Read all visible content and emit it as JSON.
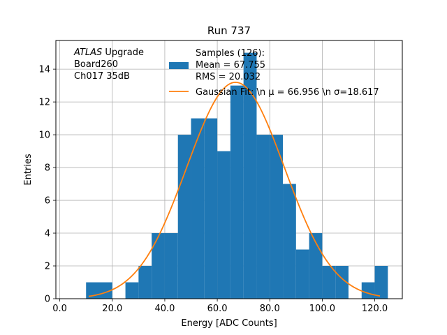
{
  "chart_data": {
    "type": "bar",
    "title": "Run 737",
    "xlabel": "Energy [ADC Counts]",
    "ylabel": "Entries",
    "xlim": [
      -1.5,
      130.5
    ],
    "ylim": [
      0,
      15.75
    ],
    "grid": true,
    "x_ticks": [
      0,
      20,
      40,
      60,
      80,
      100,
      120
    ],
    "x_tick_labels": [
      "0.0",
      "20.0",
      "40.0",
      "60.0",
      "80.0",
      "100.0",
      "120.0"
    ],
    "y_ticks": [
      0,
      2,
      4,
      6,
      8,
      10,
      12,
      14
    ],
    "y_tick_labels": [
      "0",
      "2",
      "4",
      "6",
      "8",
      "10",
      "12",
      "14"
    ],
    "bin_edges": [
      10,
      15,
      20,
      25,
      30,
      35,
      40,
      45,
      50,
      55,
      60,
      65,
      70,
      75,
      80,
      85,
      90,
      95,
      100,
      105,
      110,
      115,
      120,
      125
    ],
    "values": [
      1,
      1,
      0,
      1,
      2,
      4,
      4,
      10,
      11,
      11,
      9,
      13,
      15,
      10,
      10,
      7,
      3,
      4,
      2,
      2,
      0,
      1,
      2
    ],
    "histogram_color": "#1f77b4",
    "fit": {
      "mu": 66.956,
      "sigma": 18.617,
      "amplitude": 13.2,
      "x_range": [
        11,
        122
      ],
      "color": "#ff7f0e"
    },
    "legend": {
      "placement": "top-right",
      "entries": [
        {
          "kind": "patch",
          "lines": [
            "Samples (126):",
            " Mean = 67.755",
            " RMS = 20.032"
          ]
        },
        {
          "kind": "line",
          "lines": [
            "Gaussian Fit: \\n μ = 66.956 \\n σ=18.617"
          ]
        }
      ]
    },
    "annotation": {
      "lines": [
        {
          "italic": "ATLAS",
          "text": " Upgrade"
        },
        {
          "italic": "",
          "text": " Board260"
        },
        {
          "italic": "",
          "text": " Ch017 35dB"
        }
      ]
    }
  }
}
